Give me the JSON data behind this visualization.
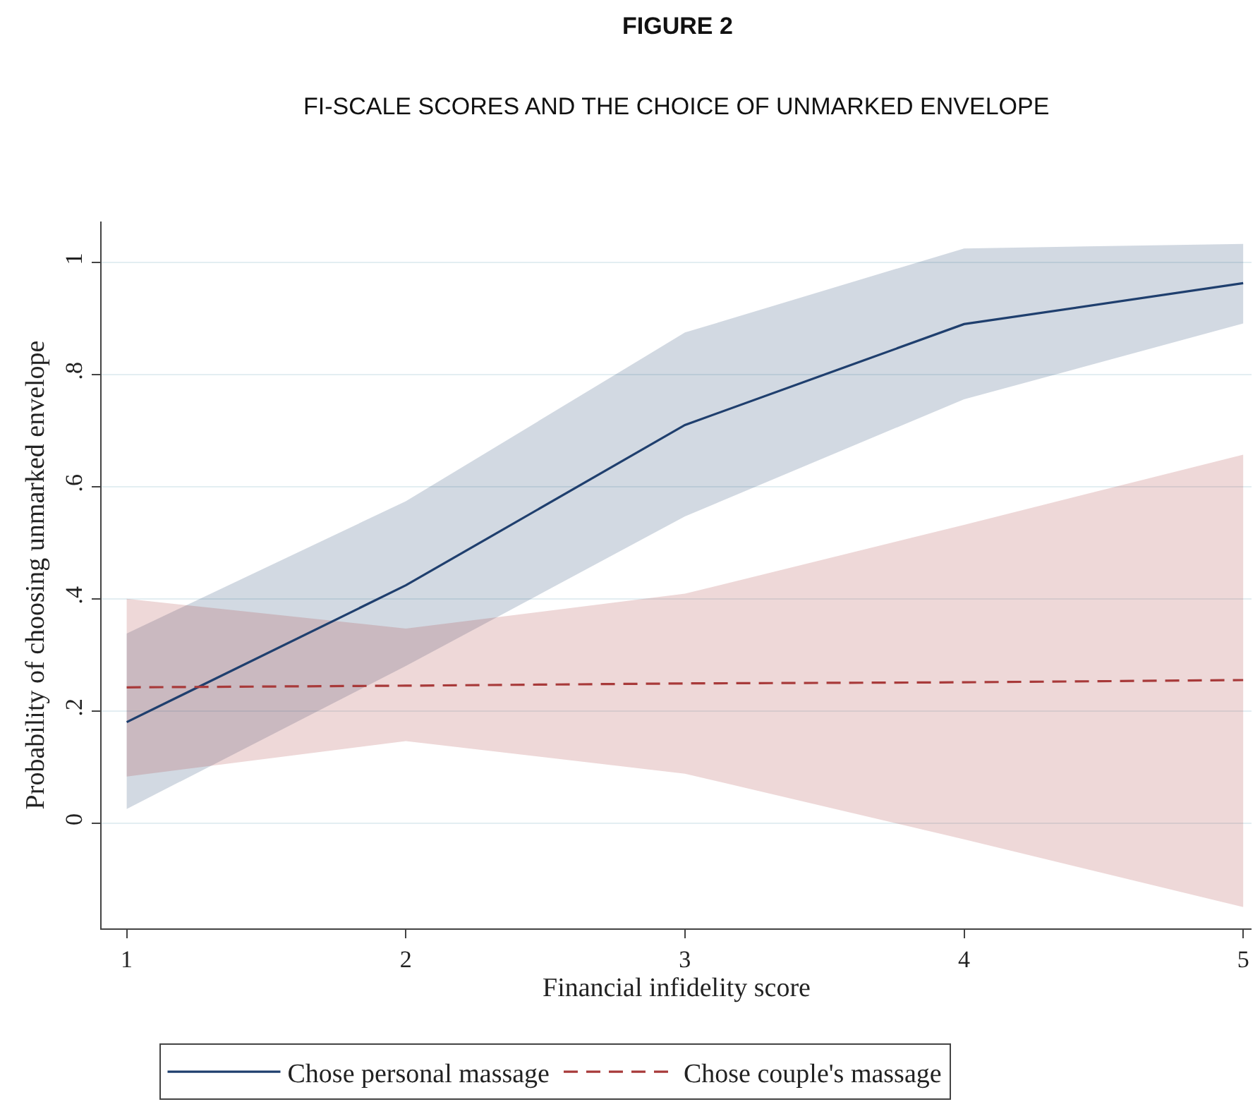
{
  "chart_data": {
    "type": "line",
    "title": "FIGURE 2",
    "subtitle": "FI-SCALE SCORES AND THE CHOICE OF UNMARKED ENVELOPE",
    "xlabel": "Financial infidelity score",
    "ylabel": "Probability of choosing unmarked envelope",
    "x": [
      1,
      2,
      3,
      4,
      5
    ],
    "series": [
      {
        "name": "Chose personal massage",
        "color": "#1f3f6e",
        "line_style": "solid",
        "values": [
          0.18,
          0.424,
          0.71,
          0.89,
          0.963
        ],
        "lower": [
          0.025,
          0.28,
          0.547,
          0.756,
          0.891
        ],
        "upper": [
          0.338,
          0.574,
          0.875,
          1.025,
          1.033
        ]
      },
      {
        "name": "Chose couple's massage",
        "color": "#a83a3a",
        "line_style": "dashed",
        "values": [
          0.242,
          0.245,
          0.249,
          0.251,
          0.255
        ],
        "lower": [
          0.083,
          0.146,
          0.088,
          -0.029,
          -0.15
        ],
        "upper": [
          0.4,
          0.347,
          0.409,
          0.532,
          0.657
        ]
      }
    ],
    "xlim": [
      0.91,
      5.03
    ],
    "ylim": [
      -0.188,
      1.073
    ],
    "xticks": [
      1,
      2,
      3,
      4,
      5
    ],
    "yticks": [
      0,
      {
        "value": 0.2,
        "label": ".2"
      },
      {
        "value": 0.4,
        "label": ".4"
      },
      {
        "value": 0.6,
        "label": ".6"
      },
      {
        "value": 0.8,
        "label": ".8"
      },
      1
    ],
    "grid": "y",
    "legend": "bottom"
  }
}
